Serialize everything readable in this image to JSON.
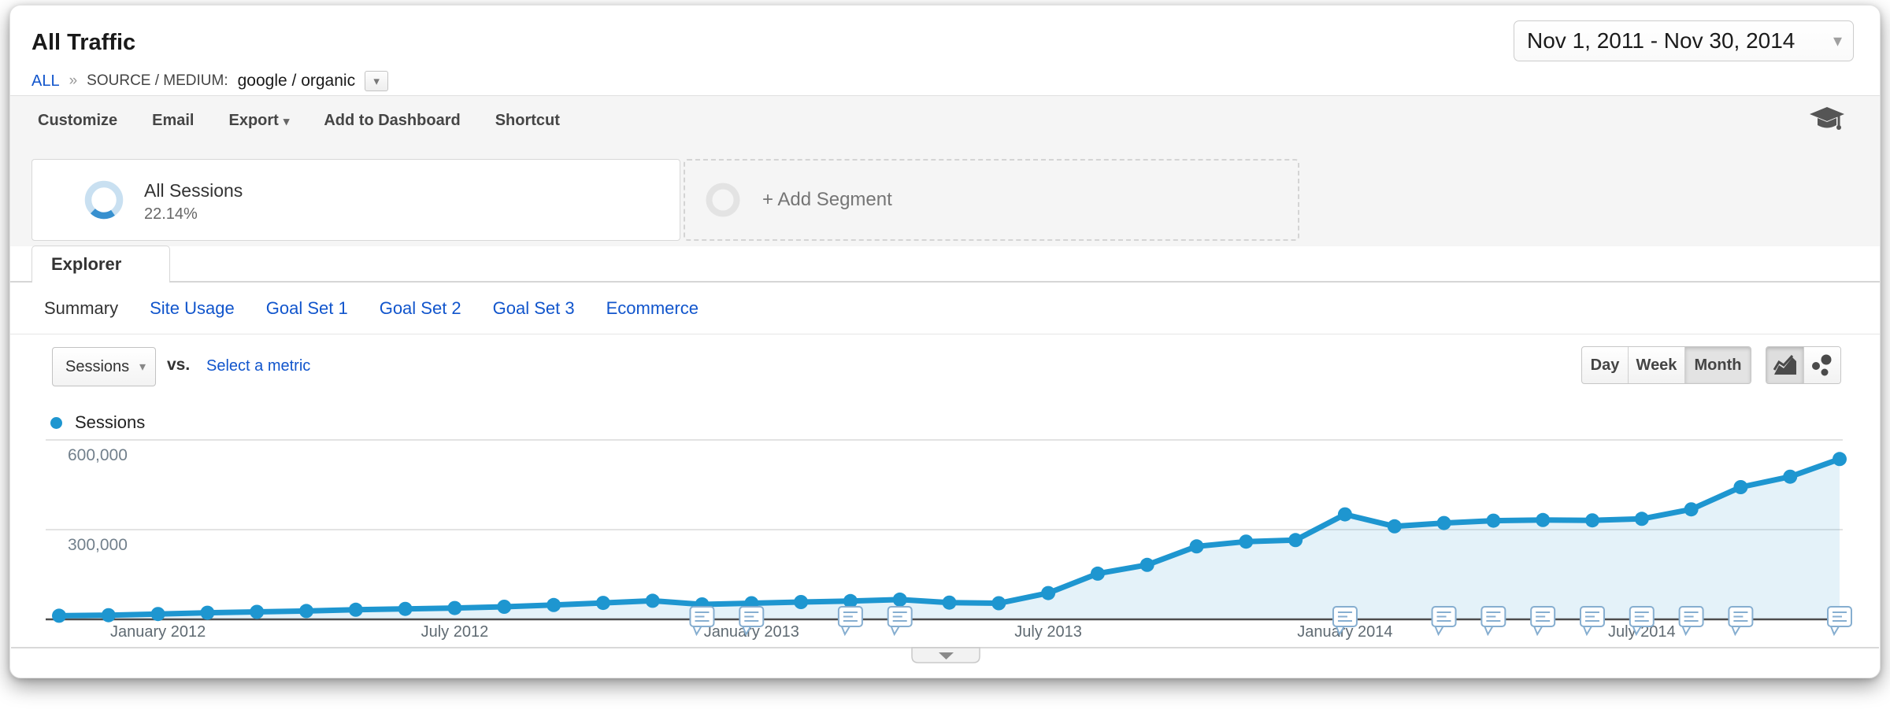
{
  "header": {
    "title": "All Traffic",
    "breadcrumb": {
      "root": "ALL",
      "separator": "»",
      "dimension_label": "SOURCE / MEDIUM:",
      "dimension_value": "google / organic"
    },
    "date_range": "Nov 1, 2011 - Nov 30, 2014"
  },
  "toolbar": {
    "items": [
      "Customize",
      "Email",
      "Export",
      "Add to Dashboard",
      "Shortcut"
    ]
  },
  "segments": {
    "all_sessions_label": "All Sessions",
    "all_sessions_percent": "22.14%",
    "add_segment_label": "+ Add Segment",
    "donut_arc_color": "#3790cf",
    "donut_ring_color": "#c9e0f1"
  },
  "explorer": {
    "tab_label": "Explorer",
    "subtabs": [
      "Summary",
      "Site Usage",
      "Goal Set 1",
      "Goal Set 2",
      "Goal Set 3",
      "Ecommerce"
    ],
    "active_subtab": "Summary"
  },
  "controls": {
    "metric_selector": "Sessions",
    "vs_label": "vs.",
    "select_metric_label": "Select a metric",
    "granularity": [
      "Day",
      "Week",
      "Month"
    ],
    "granularity_active": "Month"
  },
  "legend": {
    "label": "Sessions",
    "color": "#1e96d0"
  },
  "link_color": "#15c",
  "chart_data": {
    "type": "area",
    "title": "Sessions by month",
    "x": [
      "Nov 2011",
      "Dec 2011",
      "Jan 2012",
      "Feb 2012",
      "Mar 2012",
      "Apr 2012",
      "May 2012",
      "Jun 2012",
      "Jul 2012",
      "Aug 2012",
      "Sep 2012",
      "Oct 2012",
      "Nov 2012",
      "Dec 2012",
      "Jan 2013",
      "Feb 2013",
      "Mar 2013",
      "Apr 2013",
      "May 2013",
      "Jun 2013",
      "Jul 2013",
      "Aug 2013",
      "Sep 2013",
      "Oct 2013",
      "Nov 2013",
      "Dec 2013",
      "Jan 2014",
      "Feb 2014",
      "Mar 2014",
      "Apr 2014",
      "May 2014",
      "Jun 2014",
      "Jul 2014",
      "Aug 2014",
      "Sep 2014",
      "Oct 2014",
      "Nov 2014"
    ],
    "series": [
      {
        "name": "Sessions",
        "color": "#1e96d0",
        "fill": "rgba(30,150,208,0.12)",
        "values": [
          12000,
          14000,
          18000,
          22000,
          25000,
          28000,
          32000,
          35000,
          38000,
          42000,
          48000,
          55000,
          62000,
          50000,
          54000,
          58000,
          61000,
          66000,
          56000,
          54000,
          88000,
          153000,
          182000,
          244000,
          260000,
          265000,
          351000,
          311000,
          322000,
          330000,
          332000,
          331000,
          336000,
          368000,
          442000,
          477000,
          536000
        ]
      }
    ],
    "x_ticks": [
      {
        "label": "January 2012",
        "month": "Jan 2012"
      },
      {
        "label": "July 2012",
        "month": "Jul 2012"
      },
      {
        "label": "January 2013",
        "month": "Jan 2013"
      },
      {
        "label": "July 2013",
        "month": "Jul 2013"
      },
      {
        "label": "January 2014",
        "month": "Jan 2014"
      },
      {
        "label": "July 2014",
        "month": "Jul 2014"
      }
    ],
    "y_ticks": [
      {
        "label": "600,000",
        "value": 600000
      },
      {
        "label": "300,000",
        "value": 300000
      }
    ],
    "ylim": [
      0,
      640000
    ],
    "grid": true,
    "legend_position": "top-left",
    "annotation_months": [
      "Dec 2012",
      "Jan 2013",
      "Mar 2013",
      "Apr 2013",
      "Jan 2014",
      "Mar 2014",
      "Apr 2014",
      "May 2014",
      "Jun 2014",
      "Jul 2014",
      "Aug 2014",
      "Sep 2014",
      "Nov 2014"
    ]
  }
}
